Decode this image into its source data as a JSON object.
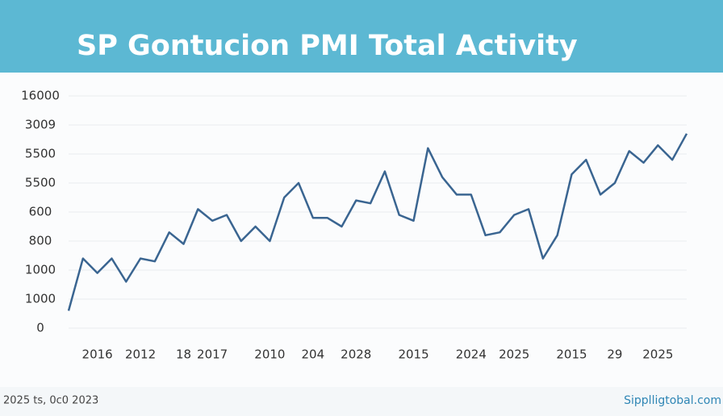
{
  "chart_data": {
    "type": "line",
    "title": "SP Gontucion PMI Total Activity",
    "footer_left": "2025 ts, 0c0 2023",
    "footer_right": "Sipplligtobal.com",
    "categories": [
      null,
      null,
      "2016",
      null,
      null,
      "2012",
      null,
      null,
      "18",
      null,
      "2017",
      null,
      null,
      null,
      "2010",
      null,
      null,
      "204",
      null,
      null,
      "2028",
      null,
      null,
      null,
      "2015",
      null,
      null,
      null,
      "2024",
      null,
      null,
      "2025",
      null,
      null,
      null,
      "2015",
      null,
      null,
      "29",
      null,
      null,
      "2025",
      null,
      null
    ],
    "series": [
      {
        "name": "PMI Total Activity",
        "color": "#3a6591",
        "values": [
          0.6,
          2.4,
          1.9,
          2.4,
          1.6,
          2.4,
          2.3,
          3.3,
          2.9,
          4.1,
          3.7,
          3.9,
          3.0,
          3.5,
          3.0,
          4.5,
          5.0,
          3.8,
          3.8,
          3.5,
          4.4,
          4.3,
          5.4,
          3.9,
          3.7,
          6.2,
          5.2,
          4.6,
          4.6,
          3.2,
          3.3,
          3.9,
          4.1,
          2.4,
          3.2,
          5.3,
          5.8,
          4.6,
          5.0,
          6.1,
          5.7,
          6.3,
          5.8,
          6.7
        ]
      }
    ],
    "ylim": [
      0,
      8
    ],
    "yticks": [
      {
        "value": 0,
        "label": "0"
      },
      {
        "value": 1,
        "label": "1000"
      },
      {
        "value": 2,
        "label": "1000"
      },
      {
        "value": 3,
        "label": "800"
      },
      {
        "value": 4,
        "label": "600"
      },
      {
        "value": 5,
        "label": "5500"
      },
      {
        "value": 6,
        "label": "5500"
      },
      {
        "value": 7,
        "label": "3009"
      },
      {
        "value": 8,
        "label": "16000"
      }
    ],
    "grid": true
  }
}
